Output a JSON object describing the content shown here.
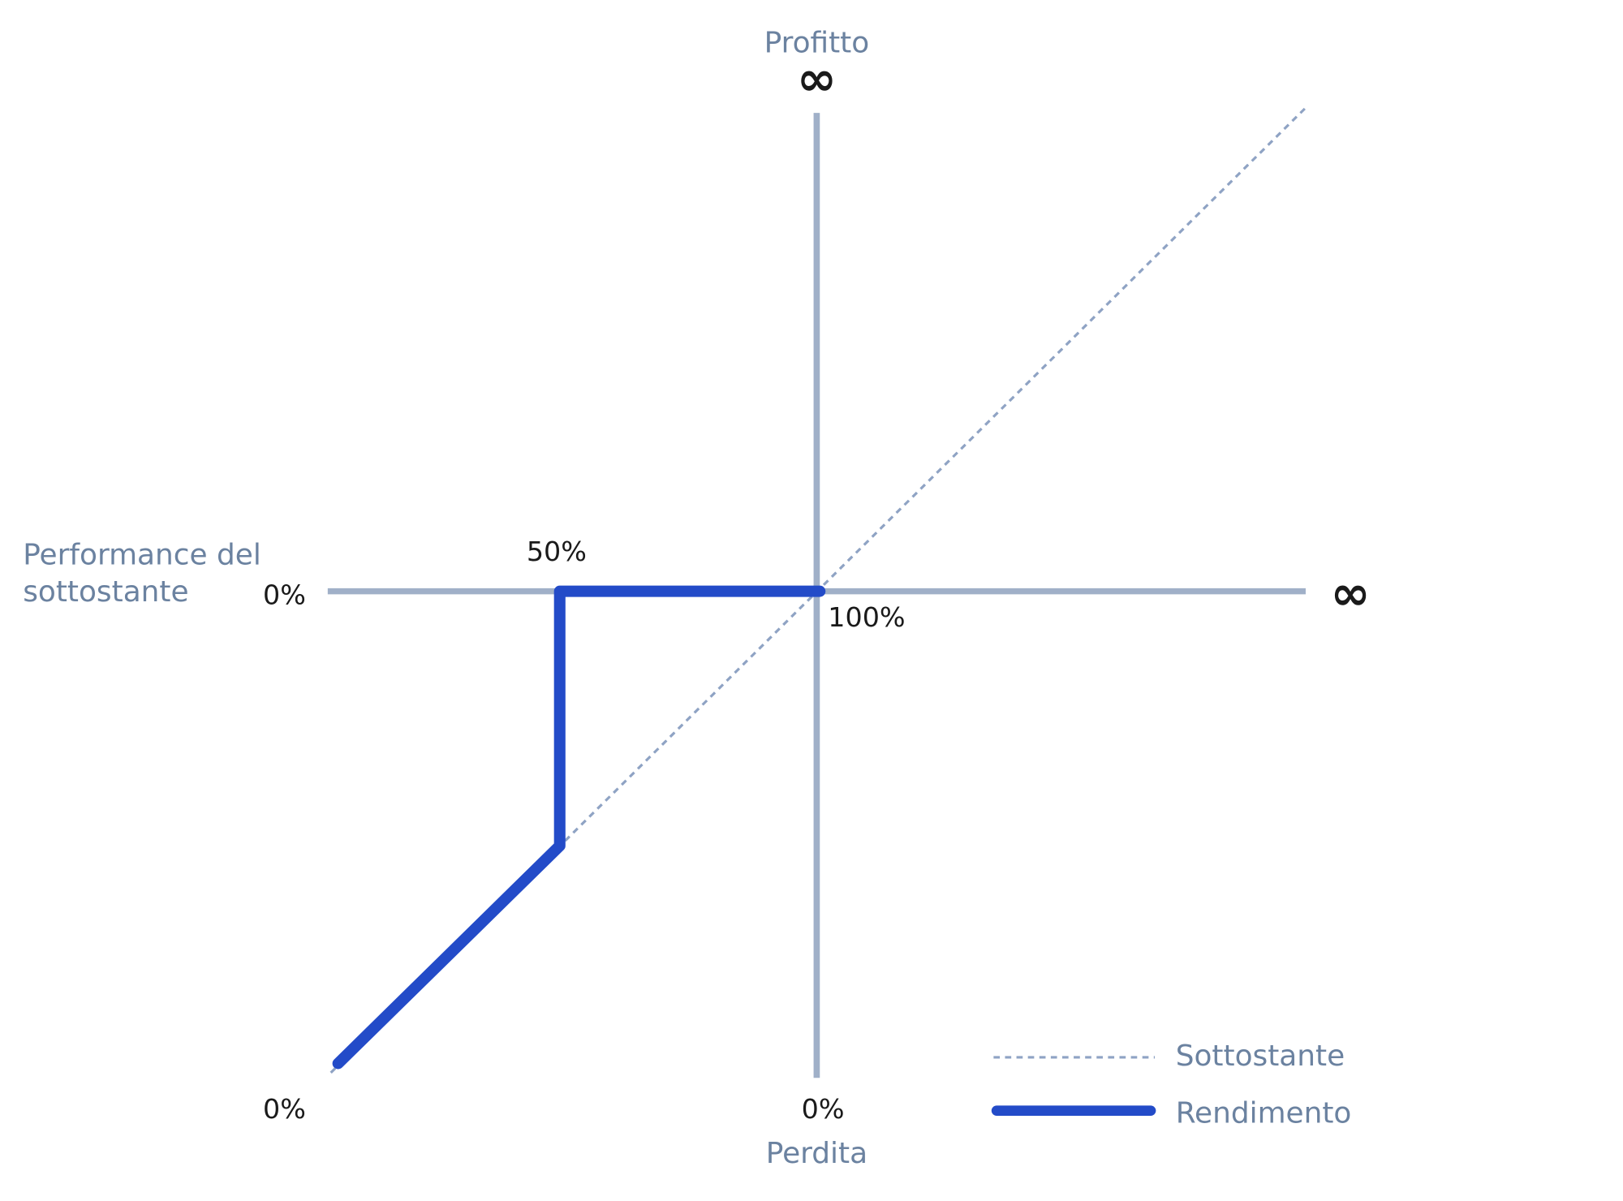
{
  "axes": {
    "top_label": "Profitto",
    "top_symbol": "∞",
    "bottom_label": "Perdita",
    "left_label_lines": [
      "Performance del",
      "sottostante"
    ],
    "right_symbol": "∞"
  },
  "labels": {
    "left_mid": "0%",
    "bend": "50%",
    "origin": "100%",
    "bottom_left": "0%",
    "bottom_mid": "0%"
  },
  "legend": [
    {
      "name": "Sottostante"
    },
    {
      "name": "Rendimento"
    }
  ]
}
